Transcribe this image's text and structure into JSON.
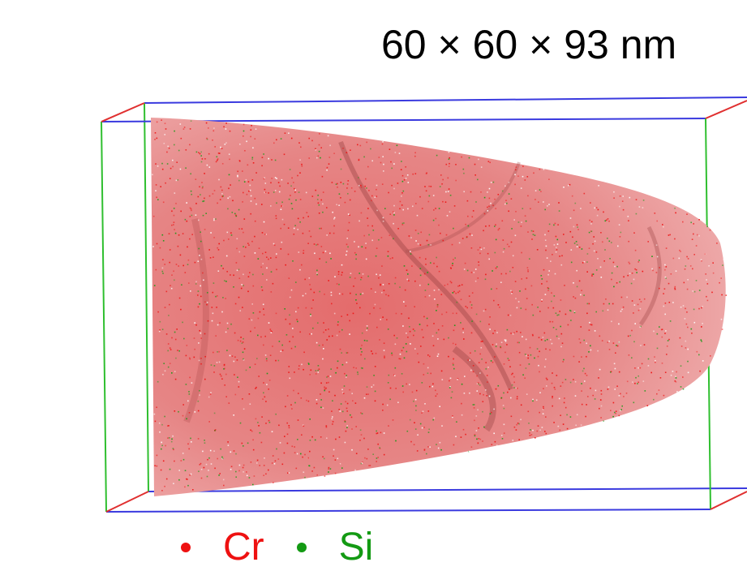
{
  "figure": {
    "dimensions_label": "60 × 60 × 93 nm",
    "description_colors": {
      "box_front_back_edges": "#3a3adf",
      "box_vertical_edges": "#2fbf2f",
      "box_depth_edges": "#e03030",
      "tip_base": "#e8a0a0"
    },
    "legend": [
      {
        "label": "Cr",
        "color": "#ee1111"
      },
      {
        "label": "Si",
        "color": "#139a13"
      }
    ]
  }
}
